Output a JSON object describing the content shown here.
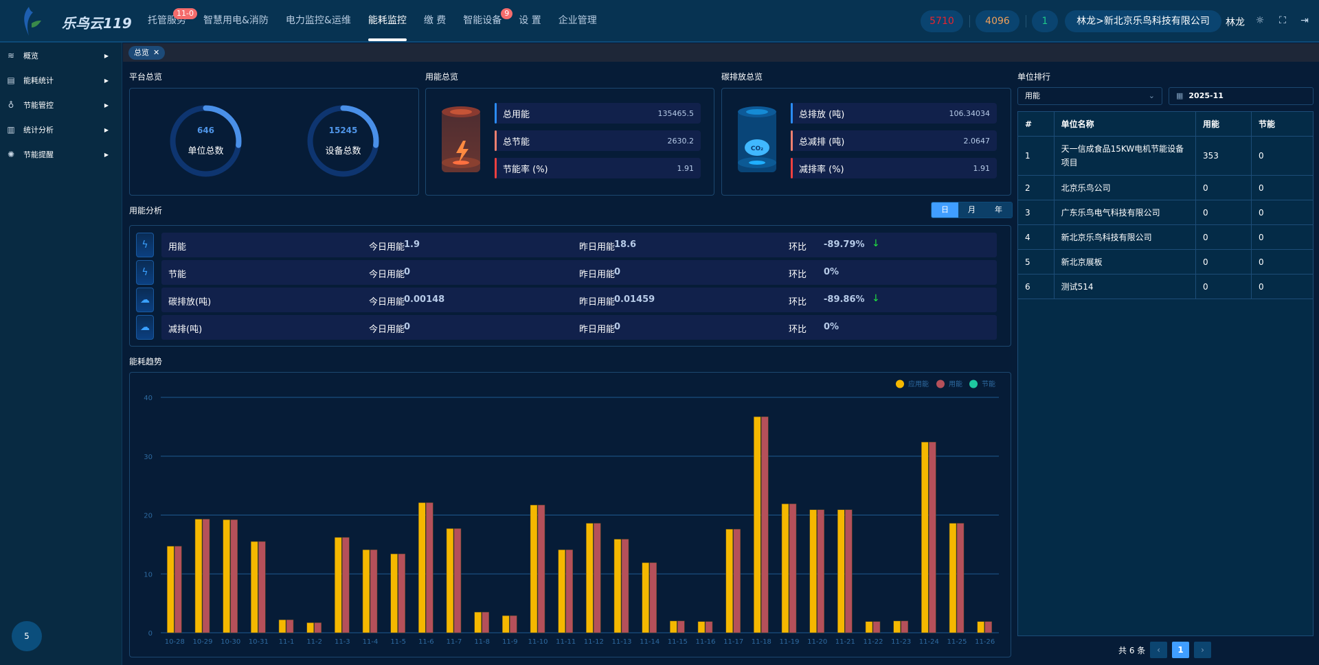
{
  "header": {
    "brand": "乐鸟云119",
    "nav": [
      {
        "label": "托管服务",
        "badge": "11-0"
      },
      {
        "label": "智慧用电&消防"
      },
      {
        "label": "电力监控&运维"
      },
      {
        "label": "能耗监控",
        "active": true
      },
      {
        "label": "缴 费"
      },
      {
        "label": "智能设备",
        "badge": "9"
      },
      {
        "label": "设 置"
      },
      {
        "label": "企业管理"
      }
    ],
    "counters": [
      {
        "value": "5710",
        "color": "#e8232e"
      },
      {
        "value": "4096",
        "color": "#f0a05a"
      },
      {
        "value": "1",
        "color": "#1ec88a"
      }
    ],
    "org": "林龙>新北京乐鸟科技有限公司",
    "user": "林龙",
    "icons": [
      "theme-icon",
      "fullscreen-icon",
      "logout-icon"
    ]
  },
  "sidebar": {
    "items": [
      {
        "label": "概览",
        "icon": "layers-icon"
      },
      {
        "label": "能耗统计",
        "icon": "report-icon"
      },
      {
        "label": "节能管控",
        "icon": "bulb-icon"
      },
      {
        "label": "统计分析",
        "icon": "bar-chart-icon"
      },
      {
        "label": "节能提醒",
        "icon": "alarm-icon"
      }
    ],
    "bubble": "5"
  },
  "tabs": [
    {
      "label": "总览"
    }
  ],
  "platform": {
    "title": "平台总览",
    "gauges": [
      {
        "value": "646",
        "label": "单位总数",
        "fill": 0.27
      },
      {
        "value": "15245",
        "label": "设备总数",
        "fill": 0.27
      }
    ]
  },
  "energy": {
    "title": "用能总览",
    "stats": [
      {
        "label": "总用能",
        "value": "135465.5",
        "color": "#2b8cf5"
      },
      {
        "label": "总节能",
        "value": "2630.2",
        "color": "#f08070"
      },
      {
        "label": "节能率 (%)",
        "value": "1.91",
        "color": "#f04040"
      }
    ]
  },
  "carbon": {
    "title": "碳排放总览",
    "stats": [
      {
        "label": "总排放 (吨)",
        "value": "106.34034",
        "color": "#2b8cf5"
      },
      {
        "label": "总减排 (吨)",
        "value": "2.0647",
        "color": "#f08070"
      },
      {
        "label": "减排率 (%)",
        "value": "1.91",
        "color": "#f04040"
      }
    ]
  },
  "analysis": {
    "title": "用能分析",
    "periods": [
      "日",
      "月",
      "年"
    ],
    "active_period": "日",
    "rows": [
      {
        "name": "用能",
        "today_label": "今日用能",
        "today": "1.9",
        "yest_label": "昨日用能",
        "yest": "18.6",
        "ratio_label": "环比",
        "ratio": "-89.79%",
        "down": true,
        "icon": "lightning-icon"
      },
      {
        "name": "节能",
        "today_label": "今日用能",
        "today": "0",
        "yest_label": "昨日用能",
        "yest": "0",
        "ratio_label": "环比",
        "ratio": "0%",
        "down": false,
        "icon": "lightning-icon"
      },
      {
        "name": "碳排放(吨)",
        "today_label": "今日用能",
        "today": "0.00148",
        "yest_label": "昨日用能",
        "yest": "0.01459",
        "ratio_label": "环比",
        "ratio": "-89.86%",
        "down": true,
        "icon": "co2-cloud-icon"
      },
      {
        "name": "减排(吨)",
        "today_label": "今日用能",
        "today": "0",
        "yest_label": "昨日用能",
        "yest": "0",
        "ratio_label": "环比",
        "ratio": "0%",
        "down": false,
        "icon": "co2-cloud-icon"
      }
    ]
  },
  "trend": {
    "title": "能耗趋势"
  },
  "chart_data": {
    "type": "bar",
    "title": "",
    "xlabel": "",
    "ylabel": "",
    "ylim": [
      0,
      40
    ],
    "yticks": [
      0,
      10,
      20,
      30,
      40
    ],
    "grid": true,
    "legend": "top-right",
    "categories": [
      "10-28",
      "10-29",
      "10-30",
      "10-31",
      "11-1",
      "11-2",
      "11-3",
      "11-4",
      "11-5",
      "11-6",
      "11-7",
      "11-8",
      "11-9",
      "11-10",
      "11-11",
      "11-12",
      "11-13",
      "11-14",
      "11-15",
      "11-16",
      "11-17",
      "11-18",
      "11-19",
      "11-20",
      "11-21",
      "11-22",
      "11-23",
      "11-24",
      "11-25",
      "11-26"
    ],
    "series": [
      {
        "name": "应用能",
        "color": "#f5b800",
        "values": [
          14.7,
          19.3,
          19.2,
          15.5,
          2.2,
          1.7,
          16.2,
          14.1,
          13.4,
          22.1,
          17.7,
          3.5,
          2.9,
          21.7,
          14.1,
          18.6,
          15.9,
          11.9,
          2.0,
          1.9,
          17.6,
          36.7,
          21.9,
          20.9,
          20.9,
          1.9,
          2.0,
          32.4,
          18.6,
          1.9
        ]
      },
      {
        "name": "用能",
        "color": "#b5505a",
        "values": [
          14.7,
          19.3,
          19.2,
          15.5,
          2.2,
          1.7,
          16.2,
          14.1,
          13.4,
          22.1,
          17.7,
          3.5,
          2.9,
          21.7,
          14.1,
          18.6,
          15.9,
          11.9,
          2.0,
          1.9,
          17.6,
          36.7,
          21.9,
          20.9,
          20.9,
          1.9,
          2.0,
          32.4,
          18.6,
          1.9
        ]
      },
      {
        "name": "节能",
        "color": "#1ec8a0",
        "values": [
          0,
          0,
          0,
          0,
          0,
          0,
          0,
          0,
          0,
          0,
          0,
          0,
          0,
          0,
          0,
          0,
          0,
          0,
          0,
          0,
          0,
          0,
          0,
          0,
          0,
          0,
          0,
          0,
          0,
          0
        ]
      }
    ]
  },
  "ranking": {
    "title": "单位排行",
    "select": "用能",
    "date": "2025-11",
    "columns": [
      "#",
      "单位名称",
      "用能",
      "节能"
    ],
    "rows": [
      [
        "1",
        "天一信成食品15KW电机节能设备项目",
        "353",
        "0"
      ],
      [
        "2",
        "北京乐鸟公司",
        "0",
        "0"
      ],
      [
        "3",
        "广东乐鸟电气科技有限公司",
        "0",
        "0"
      ],
      [
        "4",
        "新北京乐鸟科技有限公司",
        "0",
        "0"
      ],
      [
        "5",
        "新北京展板",
        "0",
        "0"
      ],
      [
        "6",
        "测试514",
        "0",
        "0"
      ]
    ],
    "total": "共 6 条",
    "page": "1"
  }
}
